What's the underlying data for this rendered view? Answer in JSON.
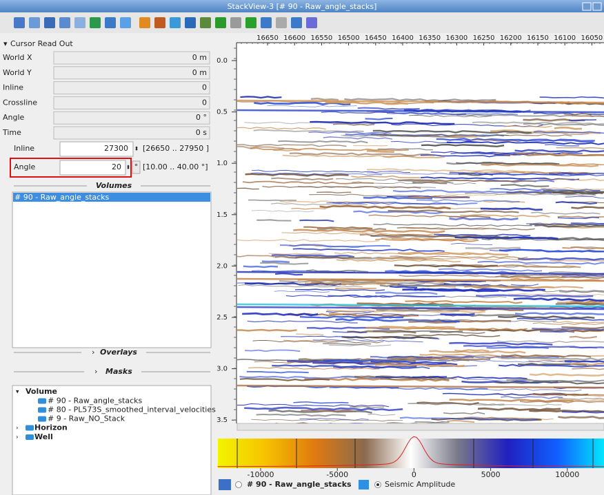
{
  "window": {
    "title": "StackView-3 [# 90 - Raw_angle_stacks]"
  },
  "cursor_readout": {
    "title": "Cursor Read Out",
    "rows": [
      {
        "label": "World X",
        "value": "0 m"
      },
      {
        "label": "World Y",
        "value": "0 m"
      },
      {
        "label": "Inline",
        "value": "0"
      },
      {
        "label": "Crossline",
        "value": "0"
      },
      {
        "label": "Angle",
        "value": "0 °"
      },
      {
        "label": "Time",
        "value": "0 s"
      }
    ]
  },
  "controls": {
    "inline": {
      "label": "Inline",
      "value": "27300",
      "range": "[26650 .. 27950 ]"
    },
    "angle": {
      "label": "Angle",
      "value": "20",
      "unit": "°",
      "range": "[10.00 .. 40.00 °]"
    }
  },
  "volumes": {
    "title": "Volumes",
    "items": [
      "# 90 - Raw_angle_stacks"
    ]
  },
  "overlays": "Overlays",
  "masks": "Masks",
  "tree": [
    {
      "label": "Volume",
      "children": [
        "# 90 - Raw_angle_stacks",
        "# 80 - PL573S_smoothed_interval_velocities",
        "# 9 - Raw_NO_Stack"
      ]
    },
    {
      "label": "Horizon"
    },
    {
      "label": "Well"
    }
  ],
  "seismic": {
    "x_ticks": [
      "16650",
      "16600",
      "16550",
      "16500",
      "16450",
      "16400",
      "16350",
      "16300",
      "16250",
      "16200",
      "16150",
      "16100",
      "16050"
    ],
    "y_ticks": [
      "0.0",
      "0.5",
      "1.0",
      "1.5",
      "2.0",
      "2.5",
      "3.0",
      "3.5"
    ]
  },
  "colorbar": {
    "ticks": [
      "-10000",
      "-5000",
      "0",
      "5000",
      "10000"
    ]
  },
  "footer": {
    "volume": "# 90 - Raw_angle_stacks",
    "attribute": "Seismic Amplitude"
  }
}
